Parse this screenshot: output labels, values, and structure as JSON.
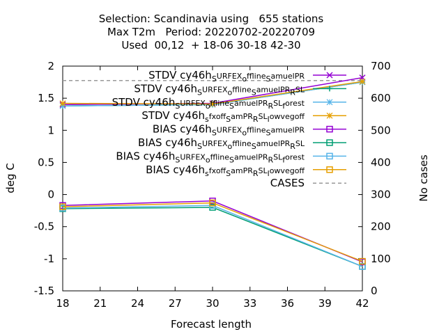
{
  "chart_data": {
    "type": "line",
    "title_lines": [
      "Selection: Scandinavia using   655 stations",
      "Max T2m   Period: 20220702-20220709",
      "Used  00,12  + 18-06 30-18 42-30"
    ],
    "xlabel": "Forecast length",
    "ylabel": "deg C",
    "y2label": "No cases",
    "x": [
      18,
      30,
      42
    ],
    "xticks": [
      18,
      21,
      24,
      27,
      30,
      33,
      36,
      39,
      42
    ],
    "yticks": [
      -1.5,
      -1,
      -0.5,
      0,
      0.5,
      1,
      1.5,
      2
    ],
    "ytick_labels": [
      "-1.5",
      "-1",
      "-0.5",
      "0",
      "0.5",
      "1",
      "1.5",
      "2"
    ],
    "y2ticks": [
      0,
      100,
      200,
      300,
      400,
      500,
      600,
      700
    ],
    "xlim": [
      18,
      42
    ],
    "ylim": [
      -1.5,
      2
    ],
    "y2lim": [
      0,
      700
    ],
    "legend_position": "top-right",
    "series": [
      {
        "name": "STDV cy46h_sURFEX_offline_samuelPR",
        "label": [
          "STDV cy46h",
          "S",
          "URFEX",
          "o",
          "ffline",
          "S",
          "amuelPR"
        ],
        "color": "#9400d3",
        "marker": "x-cross",
        "values": [
          1.4,
          1.42,
          1.82
        ]
      },
      {
        "name": "STDV cy46h_sURFEX_offline_samuelPR_RSL",
        "label": [
          "STDV cy46h",
          "S",
          "URFEX",
          "o",
          "ffline",
          "S",
          "amuelPR",
          "R",
          "SL"
        ],
        "color": "#009e73",
        "marker": "plus",
        "values": [
          1.38,
          1.4,
          1.75
        ]
      },
      {
        "name": "STDV cy46h_sURFEX_offline_samuelPR_RSL_forest",
        "label": [
          "STDV cy46h",
          "S",
          "URFEX",
          "o",
          "ffline",
          "S",
          "amuelPR",
          "R",
          "SL",
          "f",
          "orest"
        ],
        "color": "#56b4e9",
        "marker": "star",
        "values": [
          1.38,
          1.4,
          1.75
        ]
      },
      {
        "name": "STDV cy46h_sfxoff_sam_PR_RSL_lowvegoff",
        "label": [
          "STDV cy46h",
          "s",
          "fxoff",
          "S",
          "amPR",
          "R",
          "SL",
          "l",
          "owvegoff"
        ],
        "color": "#e69f00",
        "marker": "star",
        "values": [
          1.42,
          1.41,
          1.76
        ]
      },
      {
        "name": "BIAS cy46h_sURFEX_offline_samuelPR",
        "label": [
          "BIAS cy46h",
          "S",
          "URFEX",
          "o",
          "ffline",
          "S",
          "amuelPR"
        ],
        "color": "#9400d3",
        "marker": "square",
        "values": [
          -0.17,
          -0.1,
          -1.05
        ]
      },
      {
        "name": "BIAS cy46h_sURFEX_offline_samuelPR_RSL",
        "label": [
          "BIAS cy46h",
          "S",
          "URFEX",
          "o",
          "ffline",
          "S",
          "amuelPR",
          "R",
          "SL"
        ],
        "color": "#009e73",
        "marker": "square",
        "values": [
          -0.22,
          -0.2,
          -1.12
        ]
      },
      {
        "name": "BIAS cy46h_sURFEX_offline_samuelPR_RSL_forest",
        "label": [
          "BIAS cy46h",
          "S",
          "URFEX",
          "o",
          "ffline",
          "S",
          "amuelPR",
          "R",
          "SL",
          "f",
          "orest"
        ],
        "color": "#56b4e9",
        "marker": "square",
        "values": [
          -0.21,
          -0.17,
          -1.12
        ]
      },
      {
        "name": "BIAS cy46h_sfxoff_sam_PR_RSL_lowvegoff",
        "label": [
          "BIAS cy46h",
          "s",
          "fxoff",
          "S",
          "amPR",
          "R",
          "SL",
          "l",
          "owvegoff"
        ],
        "color": "#e69f00",
        "marker": "square",
        "values": [
          -0.19,
          -0.13,
          -1.04
        ]
      }
    ],
    "cases": {
      "name": "CASES",
      "axis": "y2",
      "color": "#999999",
      "style": "dashed",
      "values": [
        655,
        655,
        655
      ]
    }
  }
}
